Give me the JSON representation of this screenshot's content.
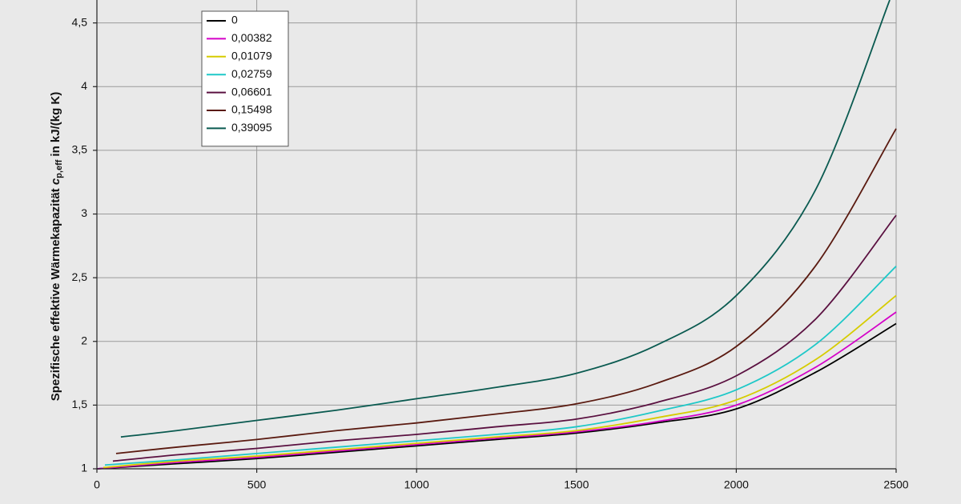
{
  "chart_data": {
    "type": "line",
    "ylabel": {
      "text": "Spezifische effektive Wärmekapazität",
      "symbol": "c",
      "subscript": "p,eff",
      "unit": "in kJ/(kg K)"
    },
    "xlim": [
      0,
      2500
    ],
    "xticks": [
      0,
      500,
      1000,
      1500,
      2000,
      2500
    ],
    "ylim": [
      1,
      4.68
    ],
    "yticks": [
      1,
      {
        "value": 1.5,
        "label": "1,5"
      },
      2,
      {
        "value": 2.5,
        "label": "2,5"
      },
      3,
      {
        "value": 3.5,
        "label": "3,5"
      },
      4,
      {
        "value": 4.5,
        "label": "4,5"
      }
    ],
    "grid": true,
    "legend": "top-left",
    "series": [
      {
        "name": "0",
        "color": "#000000",
        "x": [
          0,
          250,
          500,
          750,
          1000,
          1250,
          1500,
          1750,
          2000,
          2250,
          2500
        ],
        "values": [
          1.0,
          1.04,
          1.08,
          1.13,
          1.18,
          1.23,
          1.28,
          1.36,
          1.47,
          1.76,
          2.14
        ]
      },
      {
        "name": "0,00382",
        "color": "#d400c8",
        "x": [
          0,
          250,
          500,
          750,
          1000,
          1250,
          1500,
          1750,
          2000,
          2250,
          2500
        ],
        "values": [
          1.0,
          1.05,
          1.09,
          1.14,
          1.19,
          1.24,
          1.29,
          1.37,
          1.5,
          1.8,
          2.23
        ]
      },
      {
        "name": "0,01079",
        "color": "#d6cc00",
        "x": [
          20,
          250,
          500,
          750,
          1000,
          1250,
          1500,
          1750,
          2000,
          2250,
          2500
        ],
        "values": [
          1.01,
          1.06,
          1.1,
          1.15,
          1.2,
          1.25,
          1.3,
          1.4,
          1.54,
          1.86,
          2.36
        ]
      },
      {
        "name": "0,02759",
        "color": "#1ec8c8",
        "x": [
          25,
          250,
          500,
          750,
          1000,
          1250,
          1500,
          1750,
          2000,
          2250,
          2500
        ],
        "values": [
          1.03,
          1.07,
          1.12,
          1.17,
          1.22,
          1.27,
          1.33,
          1.45,
          1.62,
          1.98,
          2.59
        ]
      },
      {
        "name": "0,06601",
        "color": "#5a1040",
        "x": [
          50,
          250,
          500,
          750,
          1000,
          1250,
          1500,
          1750,
          2000,
          2250,
          2500
        ],
        "values": [
          1.06,
          1.11,
          1.16,
          1.22,
          1.27,
          1.33,
          1.39,
          1.52,
          1.73,
          2.18,
          2.99
        ]
      },
      {
        "name": "0,15498",
        "color": "#5a1a10",
        "x": [
          60,
          250,
          500,
          750,
          1000,
          1250,
          1500,
          1750,
          2000,
          2250,
          2500
        ],
        "values": [
          1.12,
          1.17,
          1.23,
          1.3,
          1.36,
          1.43,
          1.51,
          1.67,
          1.96,
          2.6,
          3.67
        ]
      },
      {
        "name": "0,39095",
        "color": "#0a5a50",
        "x": [
          75,
          250,
          500,
          750,
          1000,
          1250,
          1500,
          1750,
          2000,
          2250,
          2480
        ],
        "values": [
          1.25,
          1.3,
          1.38,
          1.46,
          1.55,
          1.64,
          1.75,
          1.97,
          2.36,
          3.2,
          4.68
        ]
      }
    ]
  }
}
